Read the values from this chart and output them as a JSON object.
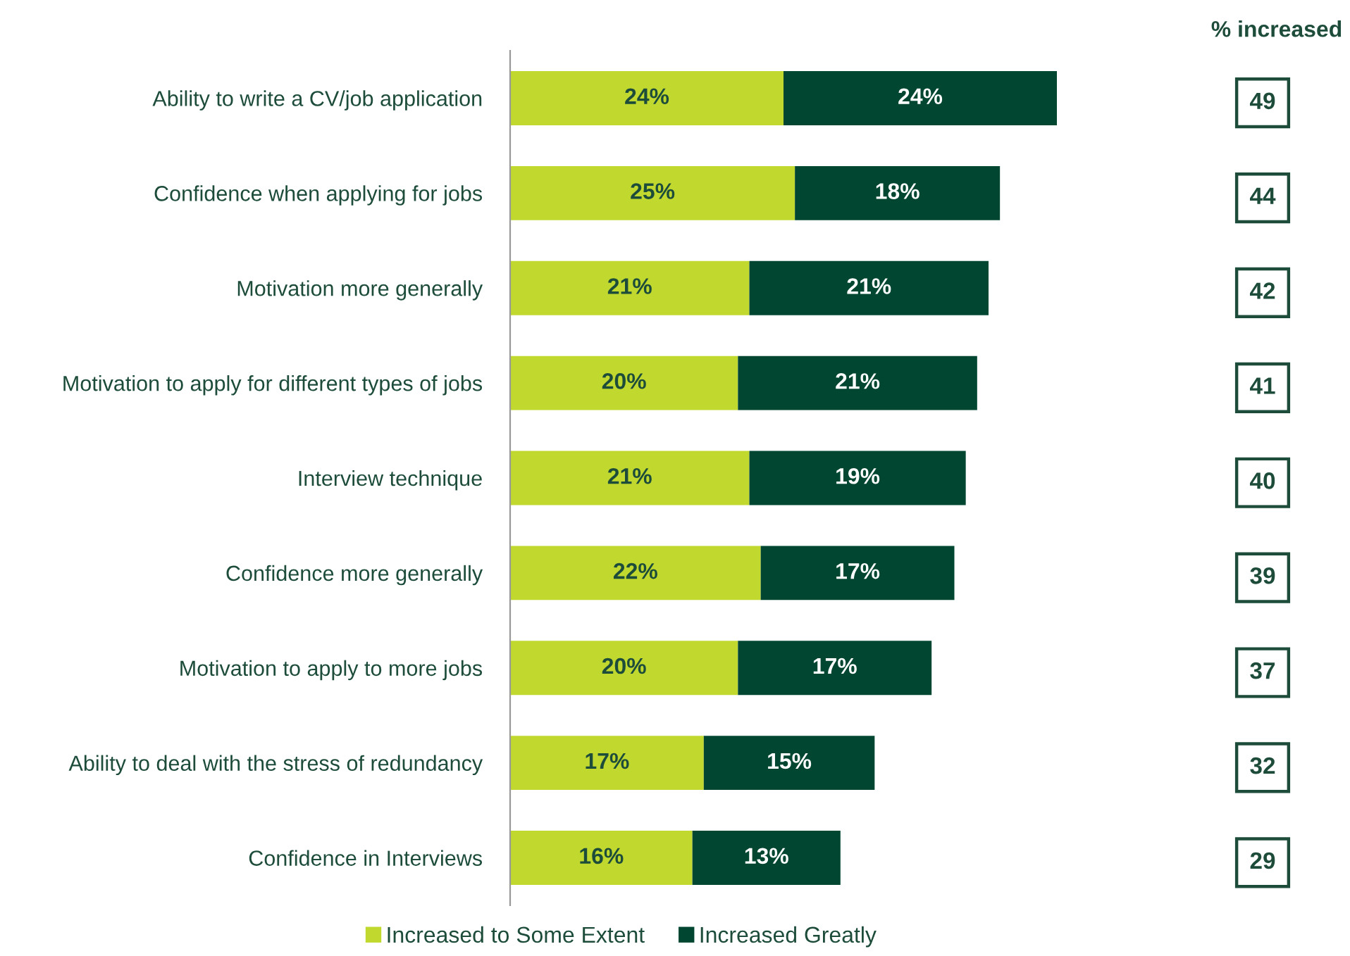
{
  "chart_data": {
    "type": "bar",
    "orientation": "horizontal",
    "stacked": true,
    "categories": [
      "Ability to write a CV/job application",
      "Confidence when applying for jobs",
      "Motivation more generally",
      "Motivation to apply for different types of jobs",
      "Interview technique",
      "Confidence more generally",
      "Motivation to apply to more jobs",
      "Ability to deal with the stress of redundancy",
      "Confidence in Interviews"
    ],
    "series": [
      {
        "name": "Increased to Some Extent",
        "color": "#c1d82f",
        "values": [
          24,
          25,
          21,
          20,
          21,
          22,
          20,
          17,
          16
        ],
        "value_labels": [
          "24%",
          "25%",
          "21%",
          "20%",
          "21%",
          "22%",
          "20%",
          "17%",
          "16%"
        ]
      },
      {
        "name": "Increased Greatly",
        "color": "#004631",
        "values": [
          24,
          18,
          21,
          21,
          19,
          17,
          17,
          15,
          13
        ],
        "value_labels": [
          "24%",
          "18%",
          "21%",
          "21%",
          "19%",
          "17%",
          "17%",
          "15%",
          "13%"
        ]
      }
    ],
    "annotations": [
      "% increased",
      "49",
      "44",
      "42",
      "41",
      "40",
      "39",
      "37",
      "32",
      "29"
    ],
    "legend": "bottom",
    "grid": false
  }
}
